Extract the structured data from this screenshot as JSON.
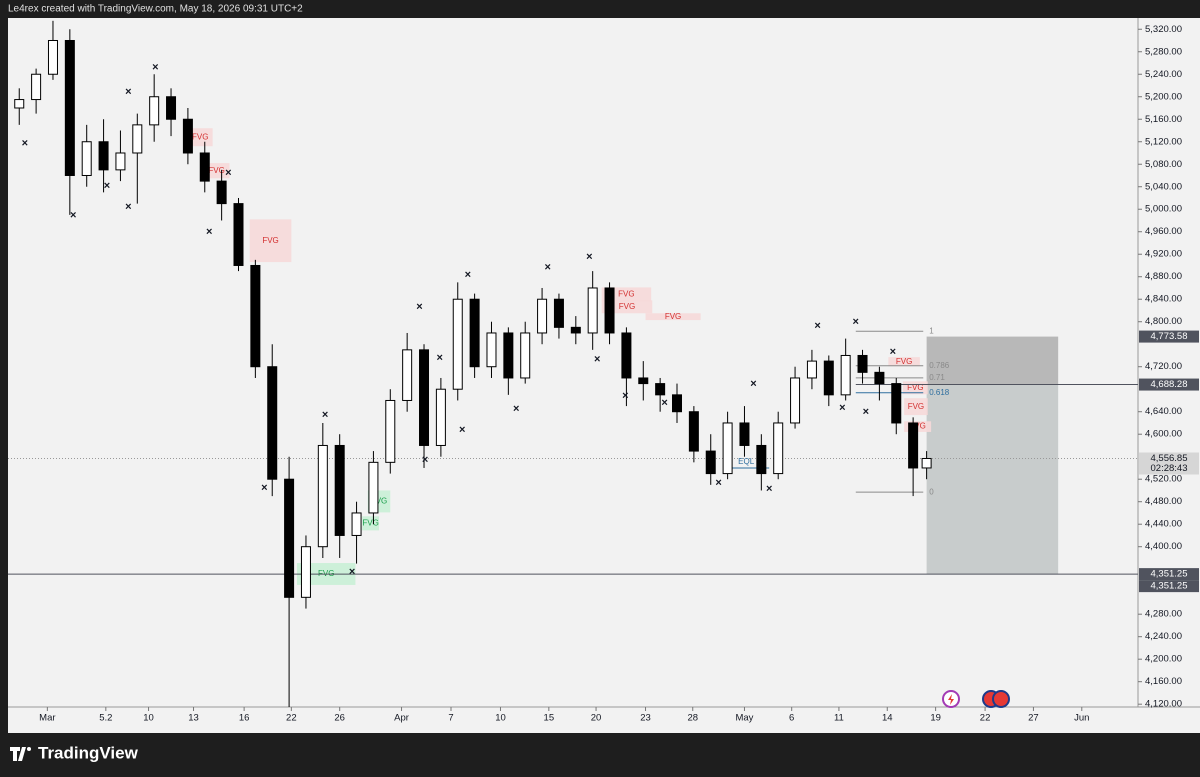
{
  "header": {
    "credit": "Le4rex created with TradingView.com, May 18, 2026 09:31 UTC+2"
  },
  "footer": {
    "brand": "TradingView"
  },
  "chart_data": {
    "type": "candlestick",
    "up_color": "#ffffff",
    "down_color": "#000000",
    "wick_color": "#000000",
    "xlim": [
      -3.5,
      97
    ],
    "ylim": [
      4115,
      5340
    ],
    "xticks": [
      {
        "value": 0,
        "label": "Mar"
      },
      5.2,
      {
        "value": 9,
        "label": "10"
      },
      {
        "value": 13,
        "label": "13"
      },
      {
        "value": 17.5,
        "label": "16"
      },
      {
        "value": 21.7,
        "label": "22"
      },
      {
        "value": 26,
        "label": "26"
      },
      {
        "value": 31.5,
        "label": "Apr"
      },
      {
        "value": 35.9,
        "label": "7"
      },
      {
        "value": 40.3,
        "label": "10"
      },
      {
        "value": 44.6,
        "label": "15"
      },
      {
        "value": 48.8,
        "label": "20"
      },
      {
        "value": 53.2,
        "label": "23"
      },
      {
        "value": 57.4,
        "label": "28"
      },
      {
        "value": 62,
        "label": "May"
      },
      {
        "value": 66.2,
        "label": "6"
      },
      {
        "value": 70.4,
        "label": "11"
      },
      {
        "value": 74.7,
        "label": "14"
      },
      {
        "value": 79,
        "label": "19"
      },
      {
        "value": 83.4,
        "label": "22"
      },
      {
        "value": 87.7,
        "label": "27"
      },
      {
        "value": 92,
        "label": "Jun"
      }
    ],
    "yticks": [
      {
        "value": 5320,
        "label": "5,320.00"
      },
      {
        "value": 5280,
        "label": "5,280.00"
      },
      {
        "value": 5240,
        "label": "5,240.00"
      },
      {
        "value": 5200,
        "label": "5,200.00"
      },
      {
        "value": 5160,
        "label": "5,160.00"
      },
      {
        "value": 5120,
        "label": "5,120.00"
      },
      {
        "value": 5080,
        "label": "5,080.00"
      },
      {
        "value": 5040,
        "label": "5,040.00"
      },
      {
        "value": 5000,
        "label": "5,000.00"
      },
      {
        "value": 4960,
        "label": "4,960.00"
      },
      {
        "value": 4920,
        "label": "4,920.00"
      },
      {
        "value": 4880,
        "label": "4,880.00"
      },
      {
        "value": 4840,
        "label": "4,840.00"
      },
      {
        "value": 4800,
        "label": "4,800.00"
      },
      {
        "value": 4720,
        "label": "4,720.00"
      },
      {
        "value": 4640,
        "label": "4,640.00"
      },
      {
        "value": 4600,
        "label": "4,600.00"
      },
      {
        "value": 4520,
        "label": "4,520.00"
      },
      {
        "value": 4480,
        "label": "4,480.00"
      },
      {
        "value": 4440,
        "label": "4,440.00"
      },
      {
        "value": 4400,
        "label": "4,400.00"
      },
      {
        "value": 4280,
        "label": "4,280.00"
      },
      {
        "value": 4240,
        "label": "4,240.00"
      },
      {
        "value": 4200,
        "label": "4,200.00"
      },
      {
        "value": 4160,
        "label": "4,160.00"
      },
      {
        "value": 4120,
        "label": "4,120.00"
      }
    ],
    "candles": {
      "x": [
        -2.5,
        -1,
        0.5,
        2,
        3.5,
        5,
        6.5,
        8,
        9.5,
        11,
        12.5,
        14,
        15.5,
        17,
        18.5,
        20,
        21.5,
        23,
        24.5,
        26,
        27.5,
        29,
        30.5,
        32,
        33.5,
        35,
        36.5,
        38,
        39.5,
        41,
        42.5,
        44,
        45.5,
        47,
        48.5,
        50,
        51.5,
        53,
        54.5,
        56,
        57.5,
        59,
        60.5,
        62,
        63.5,
        65,
        66.5,
        68,
        69.5,
        71,
        72.5,
        74,
        75.5,
        77,
        78.2
      ],
      "open": [
        5180,
        5195,
        5240,
        5300,
        5060,
        5120,
        5070,
        5100,
        5150,
        5200,
        5160,
        5100,
        5050,
        5010,
        4900,
        4720,
        4520,
        4310,
        4400,
        4580,
        4420,
        4460,
        4550,
        4660,
        4750,
        4580,
        4680,
        4840,
        4720,
        4780,
        4700,
        4780,
        4840,
        4790,
        4780,
        4860,
        4780,
        4700,
        4690,
        4670,
        4640,
        4570,
        4530,
        4620,
        4580,
        4530,
        4620,
        4700,
        4730,
        4670,
        4740,
        4710,
        4690,
        4620,
        4540
      ],
      "high": [
        5215,
        5250,
        5335,
        5320,
        5150,
        5160,
        5140,
        5170,
        5240,
        5215,
        5180,
        5120,
        5070,
        5020,
        4910,
        4760,
        4560,
        4420,
        4620,
        4600,
        4480,
        4570,
        4680,
        4780,
        4760,
        4700,
        4870,
        4850,
        4800,
        4790,
        4800,
        4860,
        4850,
        4810,
        4890,
        4870,
        4790,
        4730,
        4700,
        4690,
        4650,
        4600,
        4640,
        4650,
        4600,
        4640,
        4720,
        4750,
        4740,
        4770,
        4750,
        4720,
        4700,
        4630,
        4570
      ],
      "low": [
        5150,
        5170,
        5230,
        4990,
        5040,
        5030,
        5050,
        5010,
        5120,
        5130,
        5080,
        5030,
        4980,
        4890,
        4700,
        4490,
        4115,
        4290,
        4380,
        4380,
        4370,
        4440,
        4530,
        4640,
        4540,
        4560,
        4660,
        4700,
        4700,
        4670,
        4690,
        4760,
        4770,
        4760,
        4750,
        4760,
        4650,
        4660,
        4640,
        4620,
        4550,
        4510,
        4520,
        4560,
        4500,
        4520,
        4610,
        4680,
        4650,
        4660,
        4690,
        4660,
        4600,
        4490,
        4520
      ],
      "close": [
        5195,
        5240,
        5300,
        5060,
        5120,
        5070,
        5100,
        5150,
        5200,
        5160,
        5100,
        5050,
        5010,
        4900,
        4720,
        4520,
        4310,
        4400,
        4580,
        4420,
        4460,
        4550,
        4660,
        4750,
        4580,
        4680,
        4840,
        4720,
        4780,
        4700,
        4780,
        4840,
        4790,
        4780,
        4860,
        4780,
        4700,
        4690,
        4670,
        4640,
        4570,
        4530,
        4620,
        4580,
        4530,
        4620,
        4700,
        4730,
        4670,
        4740,
        4710,
        4690,
        4620,
        4540,
        4556.85
      ]
    },
    "swing_marks": {
      "x": [
        -2,
        2.3,
        5.3,
        7.2,
        7.2,
        9.6,
        14.4,
        16.1,
        19.3,
        24.7,
        27.1,
        33.6,
        33.1,
        34.9,
        36.9,
        37.4,
        41.7,
        44.5,
        48.2,
        48.9,
        51.4,
        54.9,
        59.7,
        62.8,
        64.2,
        68.5,
        70.7,
        71.9,
        72.8,
        75.2
      ],
      "y": [
        5117,
        4989,
        5041,
        5208,
        5004,
        5252,
        4959,
        5064,
        4504,
        4634,
        4355,
        4554,
        4826,
        4735,
        4607,
        4883,
        4645,
        4896,
        4915,
        4733,
        4668,
        4655,
        4513,
        4689,
        4502,
        4792,
        4646,
        4799,
        4639,
        4746
      ]
    },
    "zones": [
      {
        "label": "FVG",
        "kind": "bear",
        "x0": 12.5,
        "x1": 14.7,
        "y0": 5144,
        "y1": 5112
      },
      {
        "label": "FVG",
        "kind": "bear",
        "x0": 13.9,
        "x1": 16.2,
        "y0": 5082,
        "y1": 5055
      },
      {
        "label": "FVG",
        "kind": "bear",
        "x0": 18,
        "x1": 21.7,
        "y0": 4982,
        "y1": 4906
      },
      {
        "label": "FVG",
        "kind": "bear",
        "x0": 49.3,
        "x1": 53.7,
        "y0": 4861,
        "y1": 4836
      },
      {
        "label": "FVG",
        "kind": "bear",
        "x0": 49.3,
        "x1": 53.8,
        "y0": 4838,
        "y1": 4815
      },
      {
        "label": "FVG",
        "kind": "bear",
        "x0": 53.2,
        "x1": 58.1,
        "y0": 4815,
        "y1": 4803
      },
      {
        "label": "FVG",
        "kind": "bear",
        "x0": 74.8,
        "x1": 77.6,
        "y0": 4737,
        "y1": 4721
      },
      {
        "label": "FVG",
        "kind": "bear",
        "x0": 76.1,
        "x1": 78.3,
        "y0": 4694,
        "y1": 4671
      },
      {
        "label": "FVG",
        "kind": "bear",
        "x0": 76.2,
        "x1": 78.3,
        "y0": 4664,
        "y1": 4634
      },
      {
        "label": "FVG",
        "kind": "bear",
        "x0": 76.2,
        "x1": 78.6,
        "y0": 4623,
        "y1": 4604
      },
      {
        "label": "FVG",
        "kind": "bull",
        "x0": 22.2,
        "x1": 27.4,
        "y0": 4371,
        "y1": 4332
      },
      {
        "label": "FVG",
        "kind": "bull",
        "x0": 28,
        "x1": 29.5,
        "y0": 4454,
        "y1": 4429
      },
      {
        "label": "FVG",
        "kind": "bull",
        "x0": 28.5,
        "x1": 30.5,
        "y0": 4500,
        "y1": 4461
      }
    ],
    "eql": {
      "label": "EQL",
      "x0": 60.1,
      "x1": 64.2,
      "y": 4540
    },
    "fib": {
      "x0": 71.9,
      "x1": 77.9,
      "high": 4783,
      "low": 4497,
      "levels": [
        1,
        0.786,
        0.71,
        0.618,
        0
      ]
    },
    "position": {
      "x0": 78.2,
      "x1": 89.9,
      "stop": 4773.58,
      "entry": 4688.28,
      "target": 4351.25
    },
    "price_labels": [
      {
        "value": 4773.58,
        "label": "4,773.58",
        "bg": "#50535e",
        "fg": "#ffffff"
      },
      {
        "value": 4688.28,
        "label": "4,688.28",
        "bg": "#50535e",
        "fg": "#ffffff",
        "line": "solid",
        "x_from": 71.9
      },
      {
        "value": 4556.85,
        "label": "4,556.85",
        "sub": "02:28:43",
        "bg": "#d6d6d6",
        "fg": "#131722",
        "line": "dotted"
      },
      {
        "value": 4351.25,
        "label": "4,351.25",
        "bg": "#50535e",
        "fg": "#ffffff",
        "line": "solid"
      },
      {
        "value": 4351.25,
        "label": "4,351.25",
        "bg": "#50535e",
        "fg": "#ffffff",
        "stack": 1
      }
    ]
  }
}
